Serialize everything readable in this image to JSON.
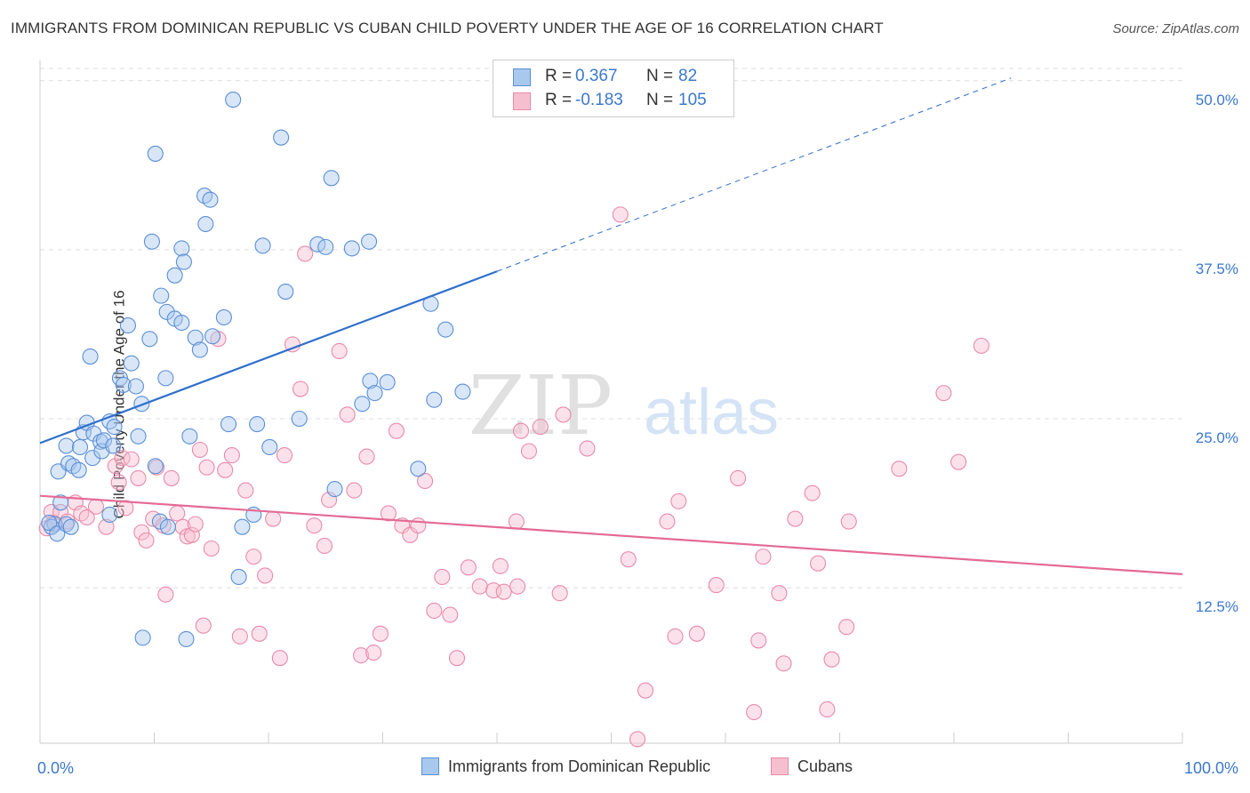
{
  "title": "IMMIGRANTS FROM DOMINICAN REPUBLIC VS CUBAN CHILD POVERTY UNDER THE AGE OF 16 CORRELATION CHART",
  "source": "Source: ZipAtlas.com",
  "legend": {
    "rows": [
      {
        "r_label": "R =",
        "r_value": "0.367",
        "n_label": "N =",
        "n_value": "82"
      },
      {
        "r_label": "R =",
        "r_value": "-0.183",
        "n_label": "N =",
        "n_value": "105"
      }
    ]
  },
  "bottom_legend": [
    "Immigrants from Dominican Republic",
    "Cubans"
  ],
  "colors": {
    "blue_fill": "#a9c8ee",
    "blue_stroke": "#5b8fd6",
    "blue_line": "#2f6fcc",
    "pink_fill": "#f6bfd0",
    "pink_stroke": "#e98aa8",
    "pink_line": "#e46a94",
    "tick_label": "#3b78cc",
    "grid": "#dddddd"
  },
  "watermark": {
    "zip": "ZIP",
    "atlas": "atlas"
  },
  "chart_data": {
    "type": "scatter",
    "xlabel": "",
    "ylabel": "Child Poverty Under the Age of 16",
    "x_tick_labels": [
      "0.0%",
      "100.0%"
    ],
    "y_ticks": [
      12.5,
      25.0,
      37.5,
      50.0
    ],
    "y_tick_labels": [
      "12.5%",
      "25.0%",
      "37.5%",
      "50.0%"
    ],
    "xlim": [
      0,
      100
    ],
    "ylim": [
      1.0,
      51.5
    ],
    "grid": "horizontal dashed",
    "legend_placement": "top-center",
    "series": [
      {
        "name": "Immigrants from Dominican Republic",
        "color": "blue",
        "trend": {
          "x": [
            0,
            40
          ],
          "y": [
            23.2,
            35.9
          ],
          "dashed_extension": {
            "x": [
              40,
              85
            ],
            "y": [
              35.9,
              50.2
            ]
          }
        },
        "points": [
          [
            1.8,
            18.8
          ],
          [
            1.3,
            17.2
          ],
          [
            1.0,
            17.0
          ],
          [
            0.8,
            17.3
          ],
          [
            1.5,
            16.5
          ],
          [
            2.3,
            17.2
          ],
          [
            1.6,
            21.1
          ],
          [
            2.3,
            23.0
          ],
          [
            2.5,
            21.7
          ],
          [
            2.9,
            21.5
          ],
          [
            3.4,
            21.2
          ],
          [
            3.5,
            22.9
          ],
          [
            3.8,
            24.0
          ],
          [
            4.1,
            24.7
          ],
          [
            4.6,
            22.1
          ],
          [
            4.7,
            23.9
          ],
          [
            5.3,
            23.3
          ],
          [
            5.4,
            22.6
          ],
          [
            5.6,
            23.4
          ],
          [
            6.1,
            24.8
          ],
          [
            6.4,
            23.0
          ],
          [
            6.5,
            24.4
          ],
          [
            6.1,
            17.9
          ],
          [
            4.4,
            29.6
          ],
          [
            7.0,
            28.0
          ],
          [
            7.3,
            27.5
          ],
          [
            8.0,
            29.1
          ],
          [
            8.4,
            27.4
          ],
          [
            8.6,
            23.7
          ],
          [
            8.9,
            26.1
          ],
          [
            7.7,
            31.9
          ],
          [
            9.6,
            30.9
          ],
          [
            10.1,
            21.5
          ],
          [
            10.5,
            17.4
          ],
          [
            9.0,
            8.8
          ],
          [
            10.1,
            44.6
          ],
          [
            9.8,
            38.1
          ],
          [
            10.6,
            34.1
          ],
          [
            11.1,
            32.9
          ],
          [
            11.0,
            28.0
          ],
          [
            11.8,
            32.4
          ],
          [
            12.4,
            37.6
          ],
          [
            11.8,
            35.6
          ],
          [
            12.6,
            36.6
          ],
          [
            12.4,
            32.1
          ],
          [
            13.1,
            23.7
          ],
          [
            12.8,
            8.7
          ],
          [
            13.6,
            31.0
          ],
          [
            14.0,
            30.1
          ],
          [
            14.5,
            39.4
          ],
          [
            14.4,
            41.5
          ],
          [
            14.9,
            41.2
          ],
          [
            15.1,
            31.1
          ],
          [
            16.1,
            32.5
          ],
          [
            16.5,
            24.6
          ],
          [
            16.9,
            48.6
          ],
          [
            17.4,
            13.3
          ],
          [
            17.7,
            17.0
          ],
          [
            18.7,
            17.9
          ],
          [
            19.0,
            24.6
          ],
          [
            19.5,
            37.8
          ],
          [
            20.1,
            22.9
          ],
          [
            21.1,
            45.8
          ],
          [
            21.5,
            34.4
          ],
          [
            22.7,
            25.0
          ],
          [
            24.3,
            37.9
          ],
          [
            25.0,
            37.7
          ],
          [
            25.5,
            42.8
          ],
          [
            25.8,
            19.8
          ],
          [
            27.3,
            37.6
          ],
          [
            28.2,
            26.1
          ],
          [
            28.8,
            38.1
          ],
          [
            28.9,
            27.8
          ],
          [
            29.3,
            26.9
          ],
          [
            30.4,
            27.7
          ],
          [
            33.1,
            21.3
          ],
          [
            34.2,
            33.5
          ],
          [
            34.5,
            26.4
          ],
          [
            35.5,
            31.6
          ],
          [
            37.0,
            27.0
          ],
          [
            2.7,
            17.0
          ],
          [
            11.2,
            17.0
          ]
        ]
      },
      {
        "name": "Cubans",
        "color": "pink",
        "trend": {
          "x": [
            0,
            100
          ],
          "y": [
            19.3,
            13.5
          ]
        },
        "points": [
          [
            0.6,
            16.9
          ],
          [
            1.0,
            18.1
          ],
          [
            1.2,
            17.3
          ],
          [
            1.8,
            18.1
          ],
          [
            2.4,
            17.4
          ],
          [
            3.1,
            18.8
          ],
          [
            3.6,
            18.0
          ],
          [
            4.1,
            17.7
          ],
          [
            4.9,
            18.5
          ],
          [
            5.8,
            17.0
          ],
          [
            6.6,
            21.5
          ],
          [
            6.9,
            20.3
          ],
          [
            7.2,
            22.1
          ],
          [
            7.5,
            18.4
          ],
          [
            8.0,
            22.0
          ],
          [
            8.6,
            20.6
          ],
          [
            8.9,
            16.6
          ],
          [
            9.3,
            16.0
          ],
          [
            9.9,
            17.6
          ],
          [
            10.2,
            21.4
          ],
          [
            10.8,
            17.1
          ],
          [
            11.0,
            12.0
          ],
          [
            11.5,
            20.6
          ],
          [
            12.0,
            18.0
          ],
          [
            12.5,
            17.0
          ],
          [
            12.9,
            16.3
          ],
          [
            13.3,
            16.4
          ],
          [
            13.6,
            17.2
          ],
          [
            14.0,
            22.7
          ],
          [
            14.3,
            9.7
          ],
          [
            14.6,
            21.4
          ],
          [
            15.0,
            15.4
          ],
          [
            15.6,
            30.9
          ],
          [
            16.2,
            21.2
          ],
          [
            16.8,
            22.3
          ],
          [
            17.5,
            8.9
          ],
          [
            18.0,
            19.7
          ],
          [
            18.7,
            14.8
          ],
          [
            19.2,
            9.1
          ],
          [
            19.7,
            13.4
          ],
          [
            20.4,
            17.6
          ],
          [
            21.0,
            7.3
          ],
          [
            21.4,
            22.3
          ],
          [
            22.1,
            30.5
          ],
          [
            22.8,
            27.2
          ],
          [
            23.2,
            37.2
          ],
          [
            24.0,
            17.1
          ],
          [
            24.9,
            15.6
          ],
          [
            25.3,
            19.0
          ],
          [
            26.2,
            30.0
          ],
          [
            26.9,
            25.3
          ],
          [
            27.5,
            19.7
          ],
          [
            28.1,
            7.5
          ],
          [
            28.6,
            22.2
          ],
          [
            29.2,
            7.7
          ],
          [
            29.8,
            9.1
          ],
          [
            30.5,
            18.0
          ],
          [
            31.2,
            24.1
          ],
          [
            31.7,
            17.1
          ],
          [
            32.4,
            16.4
          ],
          [
            33.1,
            17.1
          ],
          [
            33.7,
            20.4
          ],
          [
            34.5,
            10.8
          ],
          [
            35.2,
            13.3
          ],
          [
            35.9,
            10.5
          ],
          [
            36.5,
            7.3
          ],
          [
            37.5,
            14.0
          ],
          [
            38.5,
            12.6
          ],
          [
            39.7,
            12.3
          ],
          [
            40.6,
            12.2
          ],
          [
            40.3,
            14.1
          ],
          [
            41.8,
            12.6
          ],
          [
            41.7,
            17.4
          ],
          [
            42.1,
            24.1
          ],
          [
            42.8,
            22.6
          ],
          [
            43.8,
            24.4
          ],
          [
            45.8,
            25.3
          ],
          [
            45.5,
            12.1
          ],
          [
            47.9,
            22.8
          ],
          [
            50.8,
            40.1
          ],
          [
            51.5,
            14.6
          ],
          [
            53.0,
            4.9
          ],
          [
            52.3,
            1.3
          ],
          [
            54.9,
            17.4
          ],
          [
            55.6,
            8.9
          ],
          [
            55.9,
            18.9
          ],
          [
            57.5,
            9.1
          ],
          [
            59.2,
            12.7
          ],
          [
            61.1,
            20.6
          ],
          [
            62.5,
            3.3
          ],
          [
            62.9,
            8.6
          ],
          [
            63.3,
            14.8
          ],
          [
            64.7,
            12.1
          ],
          [
            65.1,
            6.9
          ],
          [
            66.1,
            17.6
          ],
          [
            67.6,
            19.5
          ],
          [
            68.1,
            14.3
          ],
          [
            68.9,
            3.5
          ],
          [
            69.3,
            7.2
          ],
          [
            70.6,
            9.6
          ],
          [
            70.8,
            17.4
          ],
          [
            75.2,
            21.3
          ],
          [
            79.1,
            26.9
          ],
          [
            80.4,
            21.8
          ],
          [
            82.4,
            30.4
          ]
        ]
      }
    ]
  }
}
